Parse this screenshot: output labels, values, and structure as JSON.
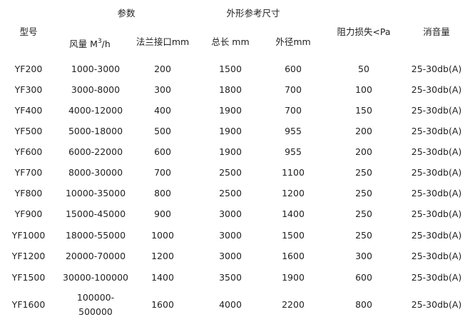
{
  "header": {
    "group_params": "参数",
    "group_dimensions": "外形参考尺寸",
    "model": "型号",
    "airflow_prefix": "风量 M",
    "airflow_sup": "3",
    "airflow_suffix": "/h",
    "flange": "法兰接口mm",
    "length": "总长 mm",
    "diameter": "外径mm",
    "resistance": "阻力损失<Pa",
    "noise": "消音量"
  },
  "rows": [
    [
      "YF200",
      "1000-3000",
      "200",
      "1500",
      "600",
      "50",
      "25-30db(A)"
    ],
    [
      "YF300",
      "3000-8000",
      "300",
      "1800",
      "700",
      "100",
      "25-30db(A)"
    ],
    [
      "YF400",
      "4000-12000",
      "400",
      "1900",
      "700",
      "150",
      "25-30db(A)"
    ],
    [
      "YF500",
      "5000-18000",
      "500",
      "1900",
      "955",
      "200",
      "25-30db(A)"
    ],
    [
      "YF600",
      "6000-22000",
      "600",
      "1900",
      "955",
      "200",
      "25-30db(A)"
    ],
    [
      "YF700",
      "8000-30000",
      "700",
      "2500",
      "1100",
      "250",
      "25-30db(A)"
    ],
    [
      "YF800",
      "10000-35000",
      "800",
      "2500",
      "1200",
      "250",
      "25-30db(A)"
    ],
    [
      "YF900",
      "15000-45000",
      "900",
      "3000",
      "1400",
      "250",
      "25-30db(A)"
    ],
    [
      "YF1000",
      "18000-55000",
      "1000",
      "3000",
      "1500",
      "250",
      "25-30db(A)"
    ],
    [
      "YF1200",
      "20000-70000",
      "1200",
      "3000",
      "1600",
      "300",
      "25-30db(A)"
    ],
    [
      "YF1500",
      "30000-100000",
      "1400",
      "3500",
      "1900",
      "600",
      "25-30db(A)"
    ],
    [
      "YF1600",
      "100000-\n500000",
      "1600",
      "4000",
      "2200",
      "800",
      "25-30db(A)"
    ]
  ]
}
